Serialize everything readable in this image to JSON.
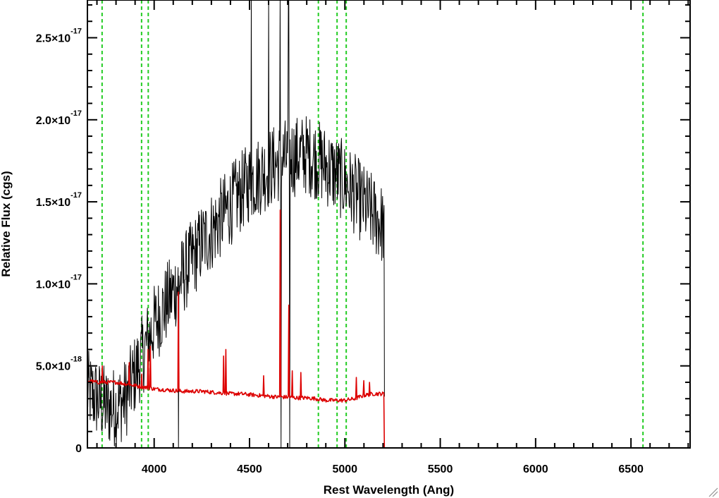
{
  "chart_data": {
    "type": "line",
    "xlabel": "Rest Wavelength (Ang)",
    "ylabel": "Relative Flux (cgs)",
    "xlim": [
      3650,
      6810
    ],
    "ylim": [
      0,
      2.73e-17
    ],
    "x_ticks": [
      {
        "value": 4000,
        "label": "4000"
      },
      {
        "value": 4500,
        "label": "4500"
      },
      {
        "value": 5000,
        "label": "5000"
      },
      {
        "value": 5500,
        "label": "5500"
      },
      {
        "value": 6000,
        "label": "6000"
      },
      {
        "value": 6500,
        "label": "6500"
      }
    ],
    "y_ticks": [
      {
        "value": 0,
        "mantissa": "0",
        "exponent": ""
      },
      {
        "value": 5e-18,
        "mantissa": "5.0×10",
        "exponent": "-18"
      },
      {
        "value": 1e-17,
        "mantissa": "1.0×10",
        "exponent": "-17"
      },
      {
        "value": 1.5e-17,
        "mantissa": "1.5×10",
        "exponent": "-17"
      },
      {
        "value": 2e-17,
        "mantissa": "2.0×10",
        "exponent": "-17"
      },
      {
        "value": 2.5e-17,
        "mantissa": "2.5×10",
        "exponent": "-17"
      }
    ],
    "x_minor_step": 100,
    "y_minor_step": 1e-18,
    "reference_lines": [
      3727,
      3934,
      3969,
      4861,
      4959,
      5007,
      6563
    ],
    "grid": false,
    "series": [
      {
        "color": "#000000",
        "anchors_x": [
          3650,
          3700,
          3750,
          3800,
          3850,
          3900,
          3950,
          4000,
          4050,
          4100,
          4150,
          4200,
          4250,
          4300,
          4350,
          4400,
          4450,
          4500,
          4550,
          4600,
          4650,
          4700,
          4750,
          4800,
          4850,
          4900,
          4950,
          5000,
          5050,
          5100,
          5150,
          5205,
          5208
        ],
        "anchors_y": [
          3.5e-18,
          3e-18,
          2.5e-18,
          2.5e-18,
          3e-18,
          4.5e-18,
          6e-18,
          7.5e-18,
          8.5e-18,
          9.5e-18,
          1.05e-17,
          1.15e-17,
          1.25e-17,
          1.32e-17,
          1.4e-17,
          1.48e-17,
          1.55e-17,
          1.62e-17,
          1.66e-17,
          1.7e-17,
          1.74e-17,
          1.77e-17,
          1.78e-17,
          1.79e-17,
          1.76e-17,
          1.72e-17,
          1.67e-17,
          1.62e-17,
          1.55e-17,
          1.48e-17,
          1.42e-17,
          1.35e-17,
          0
        ],
        "noise": 2.5e-18,
        "spikes": [
          {
            "x": 4127,
            "y": 2.73e-17
          },
          {
            "x": 4127,
            "y": 0
          },
          {
            "x": 4660,
            "y": 2.73e-17
          },
          {
            "x": 4665,
            "y": 0
          },
          {
            "x": 4705,
            "y": 2.73e-17
          },
          {
            "x": 4710,
            "y": 0
          },
          {
            "x": 4510,
            "y": 2.73e-17
          },
          {
            "x": 4600,
            "y": 2.73e-17
          }
        ]
      },
      {
        "color": "#dd0000",
        "anchors_x": [
          3650,
          3700,
          3800,
          3850,
          3900,
          3950,
          4000,
          4050,
          4100,
          4150,
          4200,
          4250,
          4300,
          4350,
          4400,
          4450,
          4500,
          4550,
          4600,
          4650,
          4700,
          4750,
          4800,
          4850,
          4900,
          4950,
          5000,
          5050,
          5100,
          5150,
          5205,
          5206,
          6810
        ],
        "anchors_y": [
          4.1e-18,
          4e-18,
          4e-18,
          3.9e-18,
          3.8e-18,
          3.7e-18,
          3.6e-18,
          3.55e-18,
          3.5e-18,
          3.45e-18,
          3.45e-18,
          3.45e-18,
          3.4e-18,
          3.35e-18,
          3.3e-18,
          3.3e-18,
          3.25e-18,
          3.2e-18,
          3.15e-18,
          3.1e-18,
          3.1e-18,
          3.05e-18,
          3.05e-18,
          3e-18,
          2.9e-18,
          2.9e-18,
          2.9e-18,
          3e-18,
          3.2e-18,
          3.3e-18,
          3.3e-18,
          0,
          0
        ],
        "noise": 1.2e-19,
        "spikes": [
          {
            "x": 3727,
            "y": 5e-18
          },
          {
            "x": 3869,
            "y": 5.2e-18
          },
          {
            "x": 3934,
            "y": 4.5e-18
          },
          {
            "x": 3969,
            "y": 6e-18
          },
          {
            "x": 3980,
            "y": 6.2e-18
          },
          {
            "x": 4127,
            "y": 9.5e-18
          },
          {
            "x": 4363,
            "y": 5.6e-18
          },
          {
            "x": 4375,
            "y": 6e-18
          },
          {
            "x": 4575,
            "y": 4.4e-18
          },
          {
            "x": 4660,
            "y": 1.45e-17
          },
          {
            "x": 4705,
            "y": 8.7e-18
          },
          {
            "x": 4725,
            "y": 4.7e-18
          },
          {
            "x": 4770,
            "y": 4.6e-18
          },
          {
            "x": 5060,
            "y": 4.3e-18
          },
          {
            "x": 5100,
            "y": 4.1e-18
          },
          {
            "x": 5130,
            "y": 4e-18
          }
        ]
      }
    ]
  }
}
